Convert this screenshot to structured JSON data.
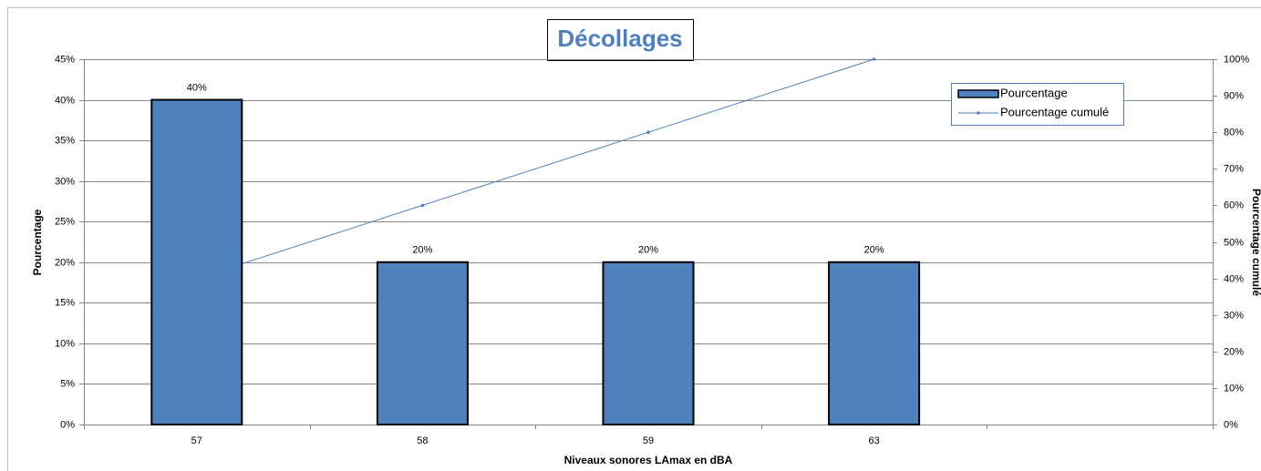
{
  "chart_data": {
    "type": "bar_line",
    "title": "Décollages",
    "x_label": "Niveaux sonores LAmax en dBA",
    "y_label": "Pourcentage",
    "y2_label": "Pourcentage cumulé",
    "categories": [
      "57",
      "58",
      "59",
      "63",
      null
    ],
    "series": [
      {
        "name": "Pourcentage",
        "type": "bar",
        "color": "#4f81bd",
        "values": [
          40,
          20,
          20,
          20,
          null
        ],
        "value_labels": [
          "40%",
          "20%",
          "20%",
          "20%",
          null
        ]
      },
      {
        "name": "Pourcentage cumulé",
        "type": "line",
        "axis": "y2",
        "color": "#4f81bd",
        "values": [
          40,
          60,
          80,
          100,
          null
        ]
      }
    ],
    "ylim": [
      0,
      45
    ],
    "yticks": [
      {
        "value": 0,
        "label": "0%"
      },
      {
        "value": 5,
        "label": "5%"
      },
      {
        "value": 10,
        "label": "10%"
      },
      {
        "value": 15,
        "label": "15%"
      },
      {
        "value": 20,
        "label": "20%"
      },
      {
        "value": 25,
        "label": "25%"
      },
      {
        "value": 30,
        "label": "30%"
      },
      {
        "value": 35,
        "label": "35%"
      },
      {
        "value": 40,
        "label": "40%"
      },
      {
        "value": 45,
        "label": "45%"
      }
    ],
    "y2lim": [
      0,
      100
    ],
    "y2ticks": [
      {
        "value": 0,
        "label": "0%"
      },
      {
        "value": 10,
        "label": "10%"
      },
      {
        "value": 20,
        "label": "20%"
      },
      {
        "value": 30,
        "label": "30%"
      },
      {
        "value": 40,
        "label": "40%"
      },
      {
        "value": 50,
        "label": "50%"
      },
      {
        "value": 60,
        "label": "60%"
      },
      {
        "value": 70,
        "label": "70%"
      },
      {
        "value": 80,
        "label": "80%"
      },
      {
        "value": 90,
        "label": "90%"
      },
      {
        "value": 100,
        "label": "100%"
      }
    ],
    "grid": true,
    "legend": "top-right"
  }
}
